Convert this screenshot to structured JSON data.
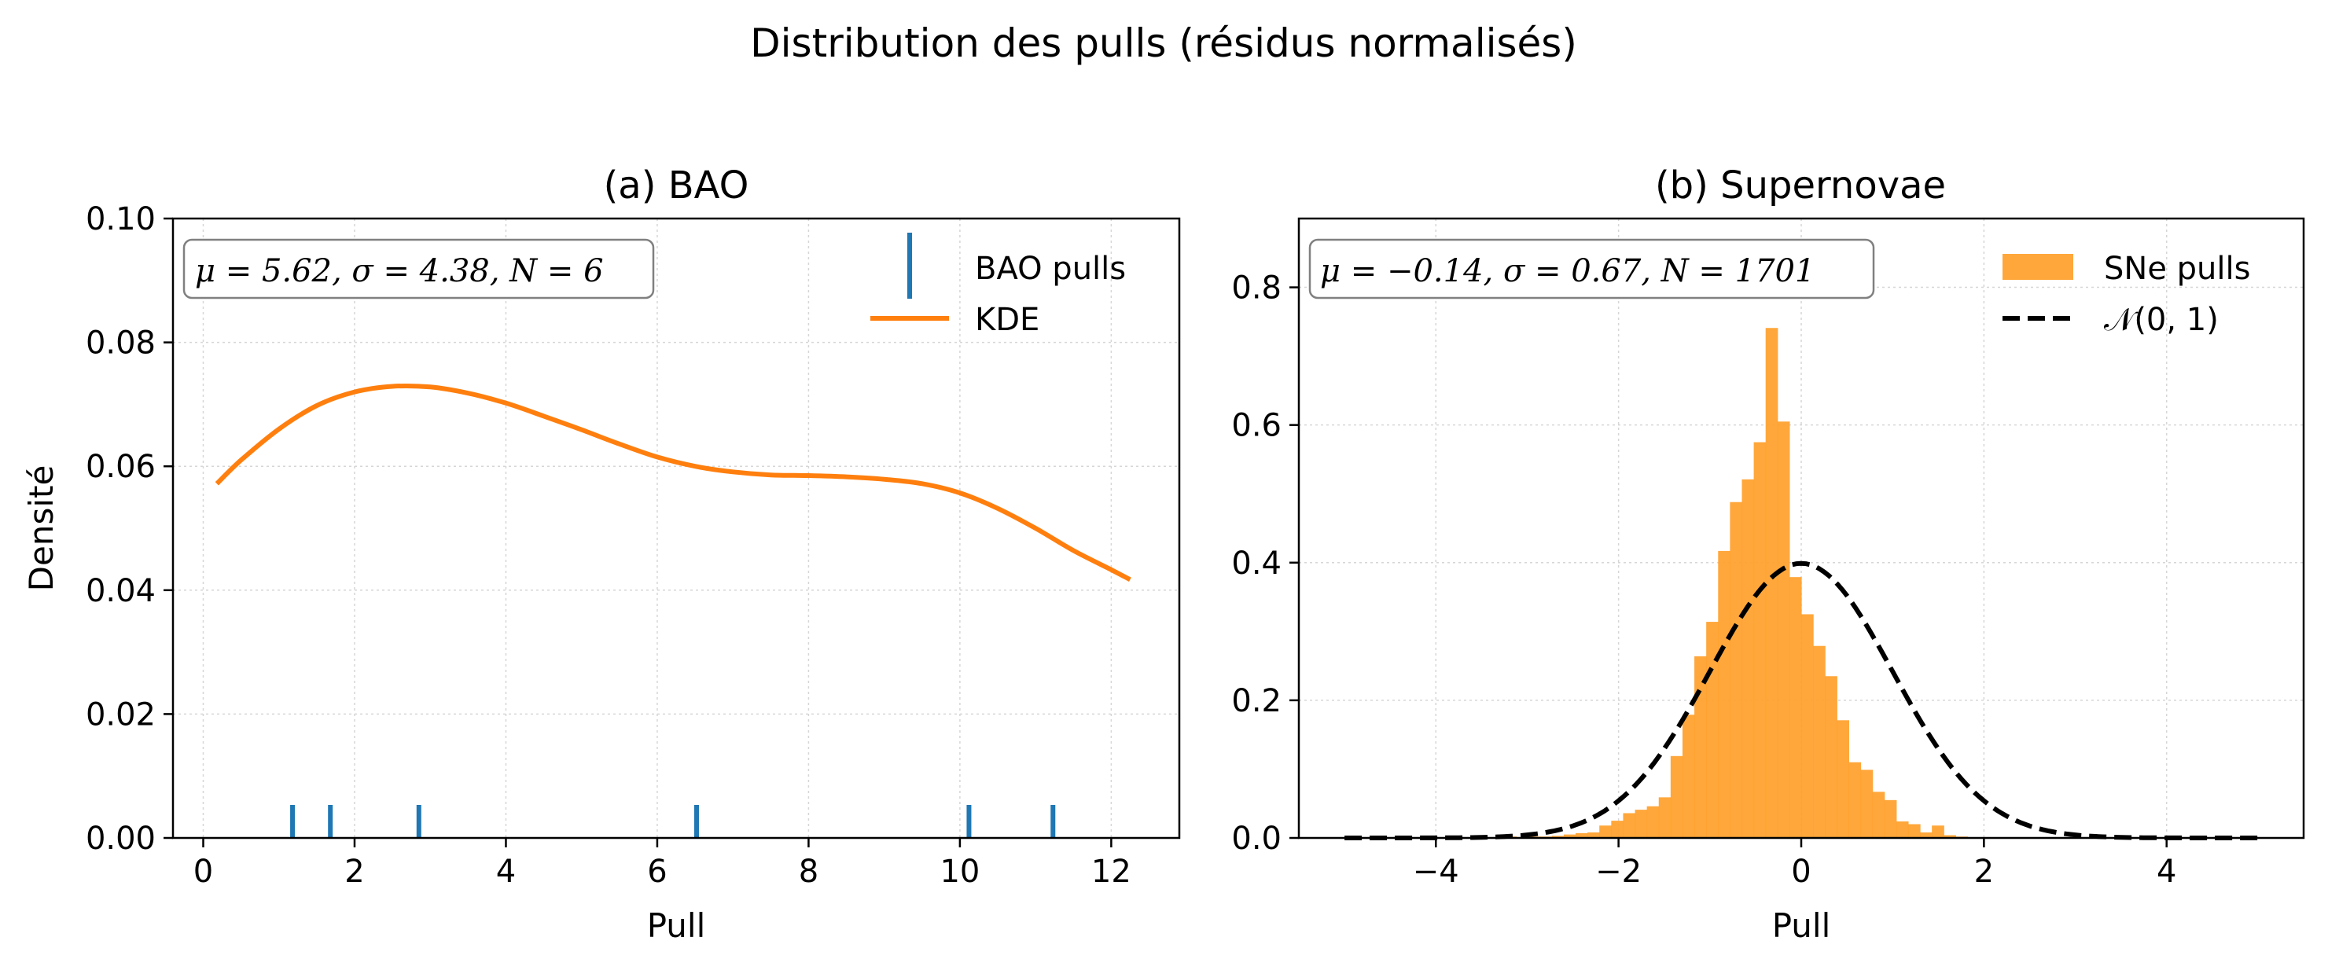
{
  "suptitle": "Distribution des pulls (résidus normalisés)",
  "chart_data": [
    {
      "type": "line",
      "title": "(a) BAO",
      "xlabel": "Pull",
      "ylabel": "Densité",
      "xlim": [
        -0.4,
        12.9
      ],
      "ylim": [
        0,
        0.1
      ],
      "xticks": [
        "0",
        "2",
        "4",
        "6",
        "8",
        "10",
        "12"
      ],
      "yticks": [
        "0.00",
        "0.02",
        "0.04",
        "0.06",
        "0.08",
        "0.10"
      ],
      "grid": true,
      "legend_position": "upper right",
      "stats_box": "μ = 5.62,  σ = 4.38,  N = 6",
      "series": [
        {
          "name": "BAO pulls",
          "kind": "rug",
          "color": "#1f77b4",
          "x": [
            1.18,
            1.68,
            2.85,
            6.52,
            10.12,
            11.23
          ]
        },
        {
          "name": "KDE",
          "kind": "line",
          "color": "#ff7f0e",
          "x": [
            0.18,
            0.5,
            1.0,
            1.5,
            2.0,
            2.5,
            3.0,
            3.5,
            4.0,
            4.5,
            5.0,
            5.5,
            6.0,
            6.5,
            7.0,
            7.5,
            8.0,
            8.5,
            9.0,
            9.5,
            10.0,
            10.5,
            11.0,
            11.5,
            12.0,
            12.25
          ],
          "y": [
            0.0572,
            0.061,
            0.066,
            0.0698,
            0.072,
            0.0729,
            0.0728,
            0.0718,
            0.0702,
            0.0681,
            0.0659,
            0.0636,
            0.0615,
            0.06,
            0.0591,
            0.0586,
            0.0585,
            0.0583,
            0.0579,
            0.0572,
            0.0557,
            0.0532,
            0.05,
            0.0464,
            0.0433,
            0.0417
          ]
        }
      ]
    },
    {
      "type": "bar",
      "title": "(b) Supernovae",
      "xlabel": "Pull",
      "ylabel": "",
      "xlim": [
        -5.5,
        5.5
      ],
      "ylim": [
        0,
        0.9
      ],
      "xticks": [
        "−4",
        "−2",
        "0",
        "2",
        "4"
      ],
      "yticks": [
        "0.0",
        "0.2",
        "0.4",
        "0.6",
        "0.8"
      ],
      "grid": true,
      "legend_position": "upper right",
      "stats_box": "μ = −0.14,  σ = 0.67,  N = 1701",
      "series": [
        {
          "name": "SNe pulls",
          "kind": "histogram",
          "color": "#ff9f2a",
          "bin_width": 0.13,
          "bin_left_edges": [
            -3.25,
            -3.12,
            -2.99,
            -2.86,
            -2.73,
            -2.6,
            -2.47,
            -2.34,
            -2.21,
            -2.08,
            -1.95,
            -1.82,
            -1.69,
            -1.56,
            -1.43,
            -1.3,
            -1.17,
            -1.04,
            -0.91,
            -0.78,
            -0.65,
            -0.52,
            -0.39,
            -0.26,
            -0.13,
            0.0,
            0.13,
            0.26,
            0.39,
            0.52,
            0.65,
            0.78,
            0.91,
            1.04,
            1.17,
            1.3,
            1.43,
            1.56,
            1.69,
            1.82,
            1.95,
            2.08
          ],
          "values": [
            0.002,
            0.0,
            0.002,
            0.002,
            0.003,
            0.005,
            0.007,
            0.008,
            0.018,
            0.025,
            0.036,
            0.041,
            0.046,
            0.059,
            0.119,
            0.179,
            0.264,
            0.314,
            0.417,
            0.488,
            0.521,
            0.575,
            0.741,
            0.605,
            0.379,
            0.325,
            0.279,
            0.235,
            0.171,
            0.11,
            0.099,
            0.067,
            0.055,
            0.024,
            0.02,
            0.008,
            0.018,
            0.004,
            0.002,
            0.0,
            0.0,
            0.0
          ]
        },
        {
          "name": "𝒩(0, 1)",
          "kind": "line",
          "style": "dashed",
          "color": "#000000",
          "function": "standard_normal_pdf",
          "x_range": [
            -5,
            5
          ]
        }
      ]
    }
  ]
}
